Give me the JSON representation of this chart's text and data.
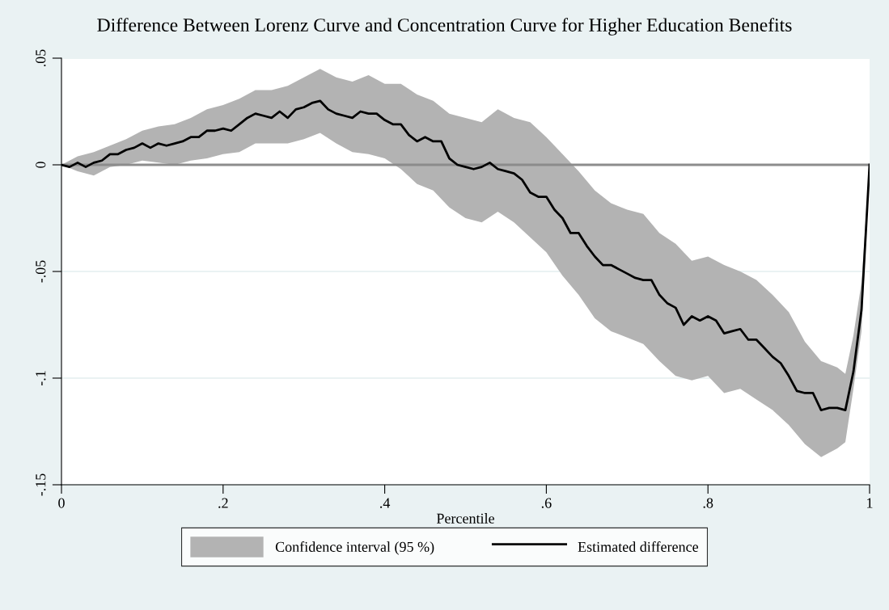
{
  "chart_data": {
    "type": "line",
    "title": "Difference Between Lorenz Curve and Concentration Curve for Higher Education Benefits",
    "xlabel": "Percentile",
    "xlim": [
      0,
      1
    ],
    "xticks": [
      {
        "value": 0,
        "label": "0"
      },
      {
        "value": 0.2,
        "label": ".2"
      },
      {
        "value": 0.4,
        "label": ".4"
      },
      {
        "value": 0.6,
        "label": ".6"
      },
      {
        "value": 0.8,
        "label": ".8"
      },
      {
        "value": 1,
        "label": "1"
      }
    ],
    "ylim": [
      -0.15,
      0.05
    ],
    "yticks": [
      {
        "value": -0.15,
        "label": "-.15"
      },
      {
        "value": -0.1,
        "label": "-.1"
      },
      {
        "value": -0.05,
        "label": "-.05"
      },
      {
        "value": 0,
        "label": "0"
      },
      {
        "value": 0.05,
        "label": ".05"
      }
    ],
    "grid": "y",
    "legend": "bottom",
    "ref_lines": [
      {
        "axis": "y",
        "value": 0,
        "color": "#8c8c8c"
      }
    ],
    "series": [
      {
        "name": "Confidence interval (95 %)",
        "color": "#b3b3b3",
        "x": [
          0,
          0.02,
          0.04,
          0.06,
          0.08,
          0.1,
          0.12,
          0.14,
          0.16,
          0.18,
          0.2,
          0.22,
          0.24,
          0.26,
          0.28,
          0.3,
          0.32,
          0.34,
          0.36,
          0.38,
          0.4,
          0.42,
          0.44,
          0.46,
          0.48,
          0.5,
          0.52,
          0.54,
          0.56,
          0.58,
          0.6,
          0.62,
          0.64,
          0.66,
          0.68,
          0.7,
          0.72,
          0.74,
          0.76,
          0.78,
          0.8,
          0.82,
          0.84,
          0.86,
          0.88,
          0.9,
          0.92,
          0.94,
          0.96,
          0.97,
          0.98,
          0.99,
          1
        ],
        "values": [
          null,
          null,
          null,
          null,
          null,
          null,
          null,
          null,
          null,
          null,
          null,
          null,
          null,
          null,
          null,
          null,
          null,
          null,
          null,
          null,
          null,
          null,
          null,
          null,
          null,
          null,
          null,
          null,
          null,
          null,
          null,
          null,
          null,
          null,
          null,
          null,
          null,
          null,
          null,
          null,
          null,
          null,
          null,
          null,
          null,
          null,
          null,
          null,
          null,
          null,
          null,
          null,
          null
        ],
        "upper": [
          0,
          0.004,
          0.006,
          0.009,
          0.012,
          0.016,
          0.018,
          0.019,
          0.022,
          0.026,
          0.028,
          0.031,
          0.035,
          0.035,
          0.037,
          0.041,
          0.045,
          0.041,
          0.039,
          0.042,
          0.038,
          0.038,
          0.033,
          0.03,
          0.024,
          0.022,
          0.02,
          0.026,
          0.022,
          0.02,
          0.013,
          0.005,
          -0.003,
          -0.012,
          -0.018,
          -0.021,
          -0.023,
          -0.032,
          -0.037,
          -0.045,
          -0.043,
          -0.047,
          -0.05,
          -0.054,
          -0.061,
          -0.069,
          -0.083,
          -0.092,
          -0.095,
          -0.098,
          -0.08,
          -0.055,
          0
        ],
        "lower": [
          0,
          -0.003,
          -0.005,
          -0.001,
          0.0,
          0.002,
          0.001,
          0.0,
          0.002,
          0.003,
          0.005,
          0.006,
          0.01,
          0.01,
          0.01,
          0.012,
          0.015,
          0.01,
          0.006,
          0.005,
          0.003,
          -0.002,
          -0.009,
          -0.012,
          -0.02,
          -0.025,
          -0.027,
          -0.022,
          -0.027,
          -0.034,
          -0.041,
          -0.052,
          -0.061,
          -0.072,
          -0.078,
          -0.081,
          -0.084,
          -0.092,
          -0.099,
          -0.101,
          -0.099,
          -0.107,
          -0.105,
          -0.11,
          -0.115,
          -0.122,
          -0.131,
          -0.137,
          -0.133,
          -0.13,
          -0.105,
          -0.078,
          0
        ]
      },
      {
        "type": "line",
        "name": "Estimated difference",
        "color": "#000000",
        "x": [
          0,
          0.01,
          0.02,
          0.03,
          0.04,
          0.05,
          0.06,
          0.07,
          0.08,
          0.09,
          0.1,
          0.11,
          0.12,
          0.13,
          0.14,
          0.15,
          0.16,
          0.17,
          0.18,
          0.19,
          0.2,
          0.21,
          0.22,
          0.23,
          0.24,
          0.25,
          0.26,
          0.27,
          0.28,
          0.29,
          0.3,
          0.31,
          0.32,
          0.33,
          0.34,
          0.35,
          0.36,
          0.37,
          0.38,
          0.39,
          0.4,
          0.41,
          0.42,
          0.43,
          0.44,
          0.45,
          0.46,
          0.47,
          0.48,
          0.49,
          0.5,
          0.51,
          0.52,
          0.53,
          0.54,
          0.55,
          0.56,
          0.57,
          0.58,
          0.59,
          0.6,
          0.61,
          0.62,
          0.63,
          0.64,
          0.65,
          0.66,
          0.67,
          0.68,
          0.69,
          0.7,
          0.71,
          0.72,
          0.73,
          0.74,
          0.75,
          0.76,
          0.77,
          0.78,
          0.79,
          0.8,
          0.81,
          0.82,
          0.83,
          0.84,
          0.85,
          0.86,
          0.87,
          0.88,
          0.89,
          0.9,
          0.91,
          0.92,
          0.93,
          0.94,
          0.95,
          0.96,
          0.97,
          0.98,
          0.99,
          1
        ],
        "values": [
          0,
          -0.001,
          0.001,
          -0.001,
          0.001,
          0.002,
          0.005,
          0.005,
          0.007,
          0.008,
          0.01,
          0.008,
          0.01,
          0.009,
          0.01,
          0.011,
          0.013,
          0.013,
          0.016,
          0.016,
          0.017,
          0.016,
          0.019,
          0.022,
          0.024,
          0.023,
          0.022,
          0.025,
          0.022,
          0.026,
          0.027,
          0.029,
          0.03,
          0.026,
          0.024,
          0.023,
          0.022,
          0.025,
          0.024,
          0.024,
          0.021,
          0.019,
          0.019,
          0.014,
          0.011,
          0.013,
          0.011,
          0.011,
          0.003,
          0.0,
          -0.001,
          -0.002,
          -0.001,
          0.001,
          -0.002,
          -0.003,
          -0.004,
          -0.007,
          -0.013,
          -0.015,
          -0.015,
          -0.021,
          -0.025,
          -0.032,
          -0.032,
          -0.038,
          -0.043,
          -0.047,
          -0.047,
          -0.049,
          -0.051,
          -0.053,
          -0.054,
          -0.054,
          -0.061,
          -0.065,
          -0.067,
          -0.075,
          -0.071,
          -0.073,
          -0.071,
          -0.073,
          -0.079,
          -0.078,
          -0.077,
          -0.082,
          -0.082,
          -0.086,
          -0.09,
          -0.093,
          -0.099,
          -0.106,
          -0.107,
          -0.107,
          -0.115,
          -0.114,
          -0.114,
          -0.115,
          -0.097,
          -0.068,
          0
        ]
      }
    ]
  }
}
